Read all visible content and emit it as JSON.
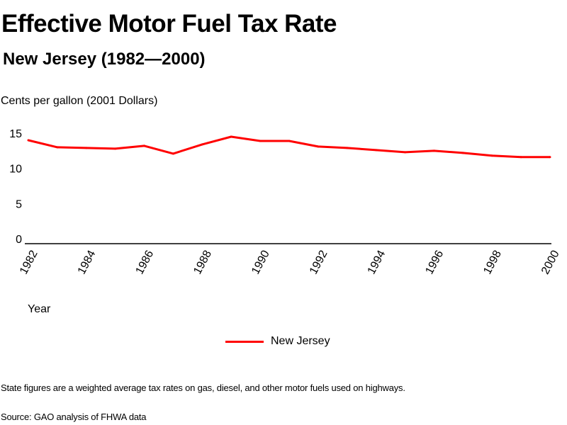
{
  "chart_data": {
    "type": "line",
    "title": "Effective Motor Fuel Tax Rate",
    "subtitle": "New Jersey (1982—2000)",
    "ylabel": "Cents per gallon (2001 Dollars)",
    "xlabel": "Year",
    "ylim": [
      0,
      15
    ],
    "yticks": [
      0,
      5,
      10,
      15
    ],
    "xlim": [
      1982,
      2000
    ],
    "xticks": [
      1982,
      1984,
      1986,
      1988,
      1990,
      1992,
      1994,
      1996,
      1998,
      2000
    ],
    "grid": false,
    "legend_position": "bottom-center",
    "x": [
      1982,
      1983,
      1984,
      1985,
      1986,
      1987,
      1988,
      1989,
      1990,
      1991,
      1992,
      1993,
      1994,
      1995,
      1996,
      1997,
      1998,
      1999,
      2000
    ],
    "series": [
      {
        "name": "New Jersey",
        "color": "#ff0000",
        "values": [
          14.7,
          13.7,
          13.6,
          13.5,
          13.9,
          12.8,
          14.1,
          15.2,
          14.6,
          14.6,
          13.8,
          13.6,
          13.3,
          13.0,
          13.2,
          12.9,
          12.5,
          12.3,
          12.3
        ]
      }
    ]
  },
  "notes": {
    "footnote": "State figures are a weighted average tax rates on gas, diesel, and other motor fuels used on highways.",
    "source": "Source: GAO analysis of FHWA data"
  }
}
